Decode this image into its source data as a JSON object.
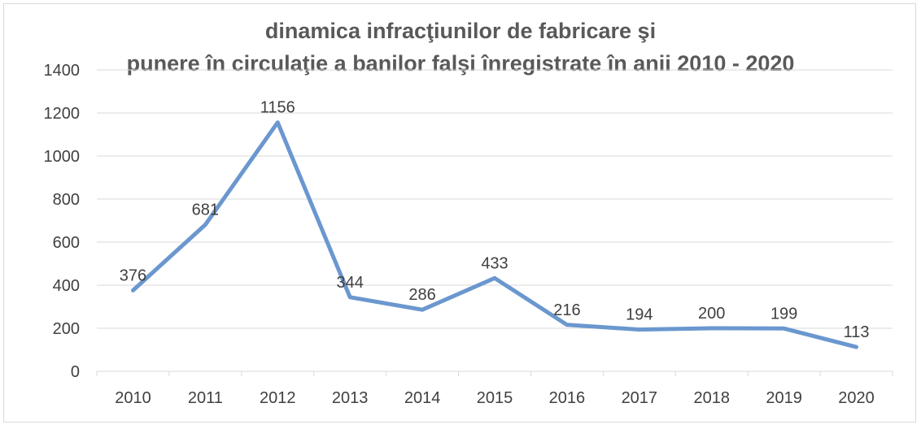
{
  "chart_data": {
    "type": "line",
    "title_lines": [
      "dinamica infracţiunilor de fabricare şi",
      "punere în circulaţie a banilor falşi înregistrate în anii 2010 - 2020"
    ],
    "categories": [
      "2010",
      "2011",
      "2012",
      "2013",
      "2014",
      "2015",
      "2016",
      "2017",
      "2018",
      "2019",
      "2020"
    ],
    "values": [
      376,
      681,
      1156,
      344,
      286,
      433,
      216,
      194,
      200,
      199,
      113
    ],
    "y_ticks": [
      "0",
      "200",
      "400",
      "600",
      "800",
      "1000",
      "1200",
      "1400"
    ],
    "ylim": [
      0,
      1400
    ],
    "xlabel": "",
    "ylabel": "",
    "grid": true,
    "legend": "none",
    "line_color": "#6b97cf",
    "grid_color": "#d9d9d9"
  }
}
